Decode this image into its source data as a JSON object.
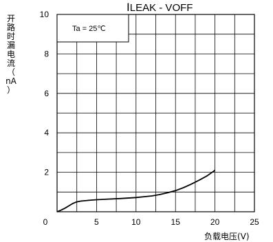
{
  "chart_data": {
    "type": "line",
    "title_main": "I",
    "title_rest": "LEAK - V",
    "title_tail": "OFF",
    "ylabel_chars": [
      "开",
      "路",
      "时",
      "漏",
      "电",
      "流",
      "（",
      "nA",
      "）"
    ],
    "xlabel": "负载电压(V)",
    "annotation": "Ta = 25℃",
    "xlim": [
      0,
      25
    ],
    "ylim": [
      0,
      10
    ],
    "x_ticks": [
      "0",
      "5",
      "10",
      "15",
      "20",
      "25"
    ],
    "y_ticks": [
      "2",
      "4",
      "6",
      "8",
      "10"
    ],
    "grid": true,
    "series": [
      {
        "x": [
          0,
          0.5,
          1,
          1.5,
          2,
          2.5,
          3,
          4,
          5,
          6,
          8,
          10,
          12,
          13,
          14,
          15,
          16,
          17,
          18,
          19,
          20
        ],
        "y": [
          0,
          0.08,
          0.18,
          0.3,
          0.42,
          0.5,
          0.54,
          0.58,
          0.61,
          0.63,
          0.67,
          0.72,
          0.8,
          0.87,
          0.96,
          1.07,
          1.22,
          1.4,
          1.6,
          1.82,
          2.1
        ]
      }
    ]
  }
}
